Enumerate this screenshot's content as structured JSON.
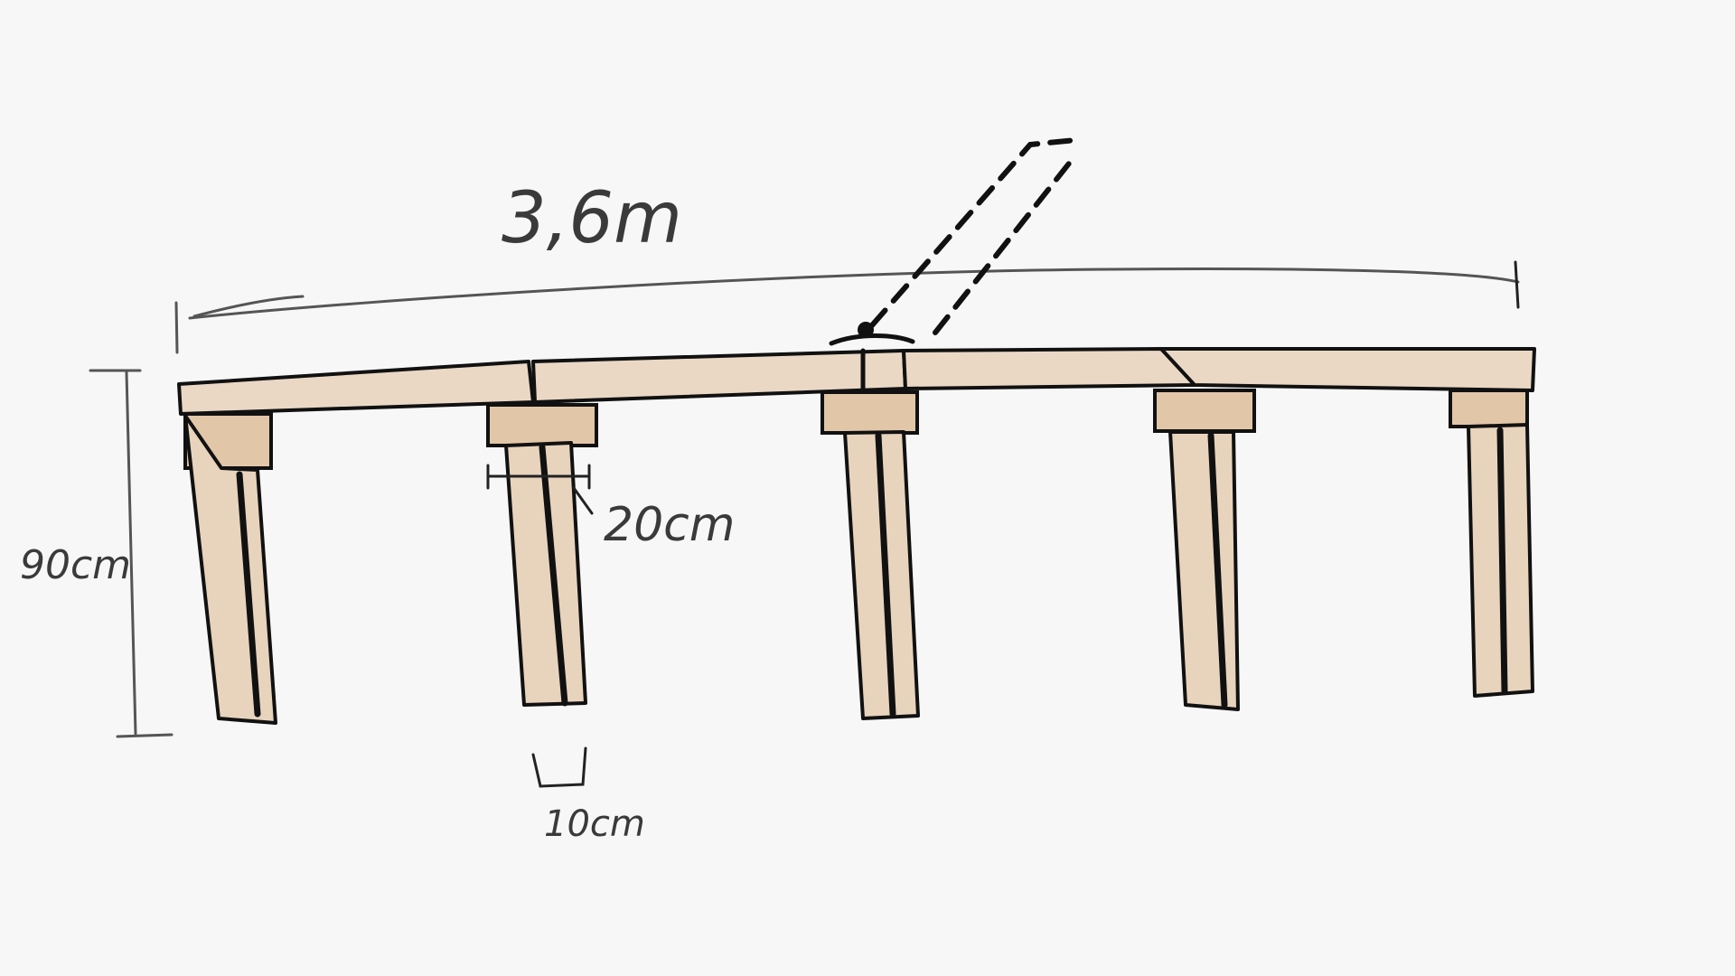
{
  "diagram": {
    "labels": {
      "length": "3,6m",
      "height": "90cm",
      "leg_depth": "20cm",
      "leg_width": "10cm"
    },
    "colors": {
      "background": "#f7f7f7",
      "wood": "#ead8c5",
      "wood_shadow": "#d9b894",
      "ink": "#111111",
      "pencil": "#555555"
    }
  }
}
